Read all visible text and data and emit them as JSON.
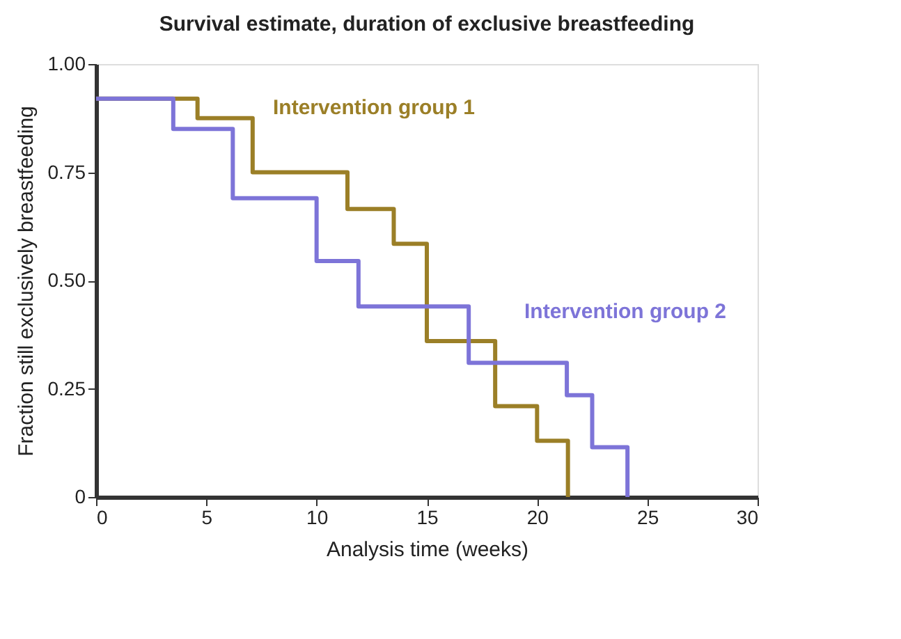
{
  "chart_data": {
    "type": "step",
    "title": "Survival estimate, duration of exclusive breastfeeding",
    "xlabel": "Analysis time (weeks)",
    "ylabel": "Fraction still exclusively breastfeeding",
    "series": [
      {
        "name": "Intervention group 1",
        "color": "#9b7f27",
        "x": [
          0,
          4.6,
          7.1,
          11.4,
          13.5,
          15.0,
          18.1,
          20.0,
          21.4
        ],
        "values": [
          0.92,
          0.875,
          0.75,
          0.665,
          0.585,
          0.36,
          0.21,
          0.13,
          0
        ]
      },
      {
        "name": "Intervention group 2",
        "color": "#7d74d8",
        "x": [
          0,
          3.5,
          6.2,
          10.0,
          11.9,
          16.9,
          21.35,
          22.5,
          24.1
        ],
        "values": [
          0.92,
          0.85,
          0.69,
          0.545,
          0.44,
          0.31,
          0.235,
          0.115,
          0
        ]
      }
    ],
    "xlim": [
      0,
      30
    ],
    "xticks": [
      0,
      5,
      10,
      15,
      20,
      25,
      30
    ],
    "ylim": [
      0,
      1
    ],
    "yticks": [
      0,
      {
        "value": 0.25,
        "label": "0.25"
      },
      {
        "value": 0.5,
        "label": "0.50"
      },
      {
        "value": 0.75,
        "label": "0.75"
      },
      {
        "value": 1,
        "label": "1.00"
      }
    ],
    "grid": false,
    "legend": false,
    "line_style": "solid"
  }
}
